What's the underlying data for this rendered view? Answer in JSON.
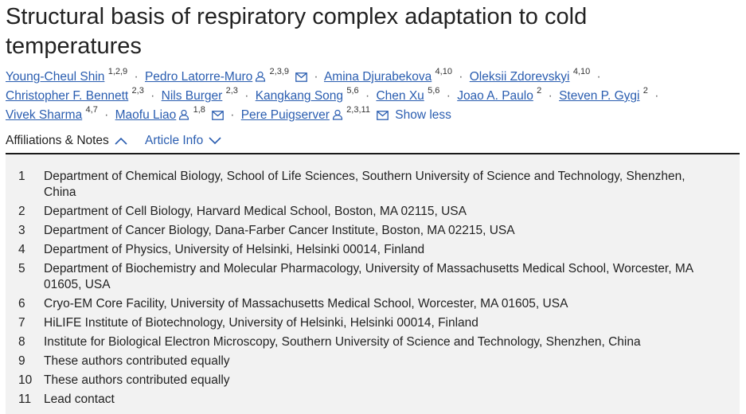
{
  "title": "Structural basis of respiratory complex adaptation to cold temperatures",
  "authors": [
    {
      "name": "Young-Cheul Shin",
      "sup": "1,2,9",
      "person_icon": false,
      "mail_icon": false
    },
    {
      "name": "Pedro Latorre-Muro",
      "sup": "2,3,9",
      "person_icon": true,
      "mail_icon": true
    },
    {
      "name": "Amina Djurabekova",
      "sup": "4,10",
      "person_icon": false,
      "mail_icon": false
    },
    {
      "name": "Oleksii Zdorevskyi",
      "sup": "4,10",
      "person_icon": false,
      "mail_icon": false
    },
    {
      "name": "Christopher F. Bennett",
      "sup": "2,3",
      "person_icon": false,
      "mail_icon": false
    },
    {
      "name": "Nils Burger",
      "sup": "2,3",
      "person_icon": false,
      "mail_icon": false
    },
    {
      "name": "Kangkang Song",
      "sup": "5,6",
      "person_icon": false,
      "mail_icon": false
    },
    {
      "name": "Chen Xu",
      "sup": "5,6",
      "person_icon": false,
      "mail_icon": false
    },
    {
      "name": "Joao A. Paulo",
      "sup": "2",
      "person_icon": false,
      "mail_icon": false
    },
    {
      "name": "Steven P. Gygi",
      "sup": "2",
      "person_icon": false,
      "mail_icon": false
    },
    {
      "name": "Vivek Sharma",
      "sup": "4,7",
      "person_icon": false,
      "mail_icon": false
    },
    {
      "name": "Maofu Liao",
      "sup": "1,8",
      "person_icon": true,
      "mail_icon": true
    },
    {
      "name": "Pere Puigserver",
      "sup": "2,3,11",
      "person_icon": true,
      "mail_icon": true
    }
  ],
  "separator": "·",
  "show_less_label": "Show less",
  "tabs": {
    "affiliations_label": "Affiliations & Notes",
    "article_info_label": "Article Info"
  },
  "affiliations": [
    {
      "num": "1",
      "text": "Department of Chemical Biology, School of Life Sciences, Southern University of Science and Technology, Shenzhen, China"
    },
    {
      "num": "2",
      "text": "Department of Cell Biology, Harvard Medical School, Boston, MA 02115, USA"
    },
    {
      "num": "3",
      "text": "Department of Cancer Biology, Dana-Farber Cancer Institute, Boston, MA 02215, USA"
    },
    {
      "num": "4",
      "text": "Department of Physics, University of Helsinki, Helsinki 00014, Finland"
    },
    {
      "num": "5",
      "text": "Department of Biochemistry and Molecular Pharmacology, University of Massachusetts Medical School, Worcester, MA 01605, USA"
    },
    {
      "num": "6",
      "text": "Cryo-EM Core Facility, University of Massachusetts Medical School, Worcester, MA 01605, USA"
    },
    {
      "num": "7",
      "text": "HiLIFE Institute of Biotechnology, University of Helsinki, Helsinki 00014, Finland"
    },
    {
      "num": "8",
      "text": "Institute for Biological Electron Microscopy, Southern University of Science and Technology, Shenzhen, China"
    },
    {
      "num": "9",
      "text": "These authors contributed equally"
    },
    {
      "num": "10",
      "text": "These authors contributed equally"
    },
    {
      "num": "11",
      "text": "Lead contact"
    }
  ],
  "colors": {
    "link": "#2a5db0",
    "panel_bg": "#f2f2f2",
    "text": "#222222"
  }
}
